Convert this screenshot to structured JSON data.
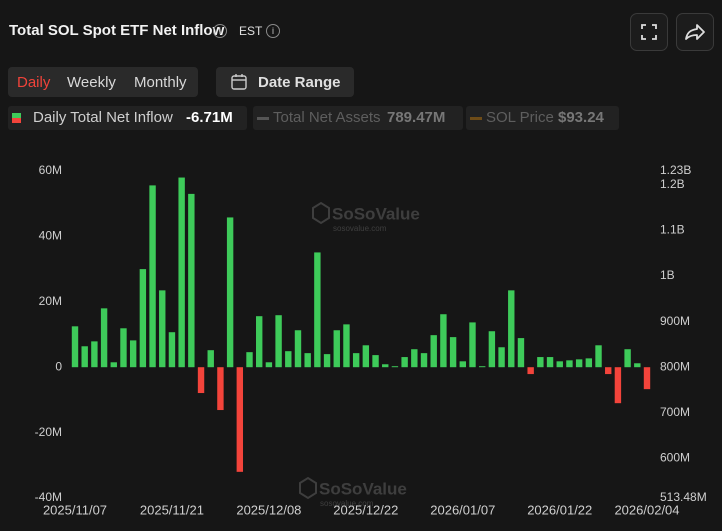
{
  "header": {
    "title": "Total SOL Spot ETF Net Inflow",
    "timezone": "EST"
  },
  "controls": {
    "periods": [
      "Daily",
      "Weekly",
      "Monthly"
    ],
    "date_range": "Date Range"
  },
  "chart_data": {
    "type": "bar",
    "legend": [
      {
        "name": "Daily Total Net Inflow",
        "value": "-6.71M"
      },
      {
        "name": "Total Net Assets",
        "value": "789.47M",
        "color": "#555555"
      },
      {
        "name": "SOL Price",
        "value": "$93.24",
        "color": "#6e4c18"
      }
    ],
    "colors": {
      "positive": "#3ecb5a",
      "negative": "#f3443b"
    },
    "categories": [
      "2025/11/07",
      null,
      null,
      null,
      null,
      null,
      null,
      null,
      null,
      null,
      "2025/11/21",
      null,
      null,
      null,
      null,
      null,
      null,
      null,
      null,
      null,
      "2025/12/08",
      null,
      null,
      null,
      null,
      null,
      null,
      null,
      null,
      null,
      "2025/12/22",
      null,
      null,
      null,
      null,
      null,
      null,
      null,
      null,
      null,
      "2026/01/07",
      null,
      null,
      null,
      null,
      null,
      null,
      null,
      null,
      null,
      "2026/01/22",
      null,
      null,
      null,
      null,
      null,
      null,
      null,
      null,
      "2026/02/04"
    ],
    "values": [
      12.5,
      6.4,
      7.9,
      18,
      1.5,
      11.9,
      8.2,
      30,
      55.6,
      23.5,
      10.7,
      58,
      53,
      -7.9,
      5.2,
      -13.1,
      45.8,
      -32,
      4.6,
      15.6,
      1.5,
      15.9,
      4.9,
      11.3,
      4.3,
      35.1,
      4.0,
      11.3,
      13.1,
      4.3,
      6.7,
      3.7,
      0.9,
      0.3,
      3.1,
      5.5,
      4.3,
      9.8,
      16.2,
      9.2,
      1.8,
      13.7,
      0.3,
      11.0,
      6.1,
      23.5,
      8.9,
      -2.1,
      3.1,
      3.1,
      1.8,
      2.1,
      2.4,
      2.7,
      6.7,
      -2.1,
      -11.0,
      5.5,
      1.2,
      -6.71
    ],
    "ylim": [
      -40,
      60
    ],
    "yticks": [
      {
        "value": -40,
        "label": "-40M"
      },
      {
        "value": -20,
        "label": "-20M"
      },
      0,
      {
        "value": 20,
        "label": "20M"
      },
      {
        "value": 40,
        "label": "40M"
      },
      {
        "value": 60,
        "label": "60M"
      }
    ],
    "y2lim": [
      513.48,
      1230
    ],
    "y2ticks": [
      {
        "value": 513.48,
        "label": "513.48M"
      },
      {
        "value": 600,
        "label": "600M"
      },
      {
        "value": 700,
        "label": "700M"
      },
      {
        "value": 800,
        "label": "800M"
      },
      {
        "value": 900,
        "label": "900M"
      },
      {
        "value": 1000,
        "label": "1B"
      },
      {
        "value": 1100,
        "label": "1.1B"
      },
      {
        "value": 1200,
        "label": "1.2B"
      },
      {
        "value": 1230,
        "label": "1.23B"
      }
    ],
    "watermark": {
      "name": "SoSoValue",
      "url": "sosovalue.com"
    }
  }
}
